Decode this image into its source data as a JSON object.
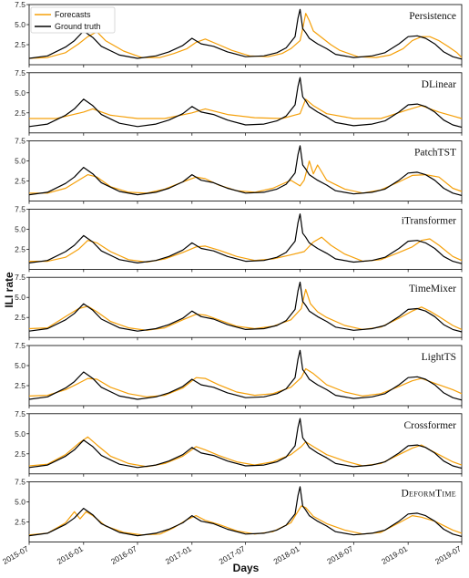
{
  "chart_data": {
    "type": "line",
    "xlabel": "Days",
    "ylabel": "ILI rate",
    "x_range": [
      "2015-07-01",
      "2019-07-01"
    ],
    "ylim": [
      0,
      7.5
    ],
    "y_ticks": [
      2.5,
      5.0,
      7.5
    ],
    "y_tick_labels": [
      "2.5",
      "5.0",
      "7.5"
    ],
    "x_ticks": [
      "2015-07",
      "2016-01",
      "2016-07",
      "2017-01",
      "2017-07",
      "2018-01",
      "2018-07",
      "2019-01",
      "2019-07"
    ],
    "legend": {
      "placement": "top-left",
      "entries": [
        {
          "label": "Forecasts",
          "color": "#f5a00a"
        },
        {
          "label": "Ground truth",
          "color": "#000000"
        }
      ]
    },
    "colors": {
      "forecast": "#f5a00a",
      "truth": "#000000"
    },
    "ground_truth": {
      "dates": [
        "2015-07-01",
        "2015-09-01",
        "2015-11-01",
        "2015-12-01",
        "2016-01-01",
        "2016-02-01",
        "2016-03-01",
        "2016-05-01",
        "2016-07-01",
        "2016-09-01",
        "2016-10-15",
        "2016-12-01",
        "2017-01-01",
        "2017-02-01",
        "2017-03-15",
        "2017-05-01",
        "2017-07-01",
        "2017-09-01",
        "2017-10-15",
        "2017-11-15",
        "2017-12-15",
        "2017-12-25",
        "2018-01-01",
        "2018-01-10",
        "2018-01-20",
        "2018-02-01",
        "2018-03-01",
        "2018-04-01",
        "2018-05-01",
        "2018-07-01",
        "2018-09-01",
        "2018-10-15",
        "2018-12-01",
        "2019-01-01",
        "2019-02-01",
        "2019-03-01",
        "2019-04-01",
        "2019-05-01",
        "2019-06-01",
        "2019-07-01"
      ],
      "values": [
        0.8,
        1.1,
        2.2,
        3.0,
        4.2,
        3.4,
        2.3,
        1.2,
        0.8,
        1.1,
        1.6,
        2.4,
        3.3,
        2.6,
        2.3,
        1.6,
        1.0,
        1.1,
        1.5,
        2.1,
        3.5,
        5.8,
        6.9,
        4.5,
        4.0,
        3.3,
        2.6,
        2.0,
        1.3,
        0.9,
        1.1,
        1.5,
        2.6,
        3.5,
        3.6,
        3.3,
        2.6,
        1.6,
        1.0,
        0.7
      ]
    },
    "panels": [
      {
        "title": "Persistence",
        "forecast": {
          "dates": [
            "2015-07-01",
            "2015-09-01",
            "2015-11-01",
            "2015-12-15",
            "2016-01-15",
            "2016-02-15",
            "2016-03-15",
            "2016-05-15",
            "2016-07-15",
            "2016-09-15",
            "2016-11-01",
            "2016-12-15",
            "2017-01-15",
            "2017-02-15",
            "2017-04-01",
            "2017-05-15",
            "2017-07-15",
            "2017-09-15",
            "2017-11-01",
            "2017-12-01",
            "2018-01-01",
            "2018-01-10",
            "2018-01-20",
            "2018-02-01",
            "2018-02-15",
            "2018-03-15",
            "2018-04-15",
            "2018-05-15",
            "2018-07-15",
            "2018-09-15",
            "2018-11-01",
            "2018-12-15",
            "2019-01-15",
            "2019-02-15",
            "2019-03-15",
            "2019-04-15",
            "2019-05-15",
            "2019-06-15",
            "2019-07-01"
          ],
          "values": [
            0.8,
            0.9,
            1.5,
            2.6,
            3.5,
            4.1,
            3.0,
            1.7,
            0.9,
            0.9,
            1.4,
            2.0,
            2.8,
            3.2,
            2.5,
            1.8,
            1.1,
            1.0,
            1.4,
            2.0,
            3.0,
            4.5,
            6.4,
            5.5,
            4.2,
            3.4,
            2.5,
            1.8,
            1.0,
            0.9,
            1.2,
            2.0,
            3.0,
            3.5,
            3.5,
            3.0,
            2.3,
            1.5,
            0.9
          ]
        }
      },
      {
        "title": "DLinear",
        "forecast": {
          "dates": [
            "2015-07-01",
            "2015-10-01",
            "2016-01-01",
            "2016-02-01",
            "2016-04-01",
            "2016-07-01",
            "2016-10-01",
            "2017-01-01",
            "2017-02-15",
            "2017-05-01",
            "2017-08-01",
            "2017-11-01",
            "2018-01-01",
            "2018-01-20",
            "2018-02-15",
            "2018-04-01",
            "2018-07-01",
            "2018-10-01",
            "2019-01-01",
            "2019-02-15",
            "2019-04-15",
            "2019-07-01"
          ],
          "values": [
            1.8,
            1.8,
            2.6,
            3.0,
            2.2,
            1.8,
            1.8,
            2.5,
            3.0,
            2.3,
            1.9,
            1.8,
            2.4,
            4.2,
            3.4,
            2.4,
            1.8,
            1.8,
            2.9,
            3.4,
            2.6,
            1.8
          ]
        }
      },
      {
        "title": "PatchTST",
        "forecast": {
          "dates": [
            "2015-07-01",
            "2015-09-01",
            "2015-11-01",
            "2015-12-15",
            "2016-01-15",
            "2016-02-15",
            "2016-04-01",
            "2016-06-01",
            "2016-08-01",
            "2016-10-01",
            "2016-12-01",
            "2017-01-15",
            "2017-02-15",
            "2017-04-01",
            "2017-06-01",
            "2017-08-01",
            "2017-10-01",
            "2017-12-01",
            "2018-01-01",
            "2018-01-15",
            "2018-02-01",
            "2018-02-15",
            "2018-03-01",
            "2018-04-01",
            "2018-06-01",
            "2018-08-01",
            "2018-10-01",
            "2018-12-01",
            "2019-01-15",
            "2019-03-01",
            "2019-04-15",
            "2019-06-01",
            "2019-07-01"
          ],
          "values": [
            1.0,
            1.0,
            1.6,
            2.6,
            3.3,
            3.0,
            1.8,
            1.1,
            1.0,
            1.5,
            2.4,
            3.0,
            2.8,
            2.0,
            1.3,
            1.1,
            1.6,
            2.6,
            1.9,
            2.6,
            5.0,
            3.4,
            4.5,
            2.6,
            1.5,
            1.0,
            1.4,
            2.4,
            3.2,
            3.3,
            3.0,
            1.6,
            1.2
          ]
        }
      },
      {
        "title": "iTransformer",
        "forecast": {
          "dates": [
            "2015-07-01",
            "2015-09-01",
            "2015-11-01",
            "2015-12-15",
            "2016-01-15",
            "2016-02-15",
            "2016-04-01",
            "2016-06-01",
            "2016-08-01",
            "2016-10-01",
            "2016-12-01",
            "2017-01-15",
            "2017-02-15",
            "2017-04-01",
            "2017-06-01",
            "2017-08-01",
            "2017-10-01",
            "2017-12-01",
            "2018-01-15",
            "2018-02-15",
            "2018-03-15",
            "2018-04-15",
            "2018-06-01",
            "2018-08-01",
            "2018-10-01",
            "2018-12-01",
            "2019-01-15",
            "2019-02-15",
            "2019-03-15",
            "2019-04-15",
            "2019-06-01",
            "2019-07-01"
          ],
          "values": [
            1.0,
            1.0,
            1.5,
            2.5,
            3.6,
            3.3,
            2.2,
            1.2,
            0.9,
            1.3,
            2.1,
            2.8,
            2.9,
            2.4,
            1.6,
            1.1,
            1.3,
            1.8,
            2.2,
            3.4,
            4.0,
            3.0,
            1.9,
            1.0,
            1.2,
            2.1,
            2.8,
            3.6,
            3.8,
            3.0,
            1.6,
            1.1
          ]
        }
      },
      {
        "title": "TimeMixer",
        "forecast": {
          "dates": [
            "2015-07-01",
            "2015-09-01",
            "2015-11-01",
            "2015-12-15",
            "2016-01-15",
            "2016-02-15",
            "2016-04-01",
            "2016-06-01",
            "2016-08-01",
            "2016-10-01",
            "2016-12-01",
            "2017-01-15",
            "2017-02-15",
            "2017-04-01",
            "2017-06-01",
            "2017-08-01",
            "2017-10-01",
            "2017-12-01",
            "2018-01-05",
            "2018-01-20",
            "2018-02-05",
            "2018-03-01",
            "2018-04-01",
            "2018-06-01",
            "2018-08-01",
            "2018-10-01",
            "2018-12-01",
            "2019-01-15",
            "2019-02-15",
            "2019-03-15",
            "2019-04-15",
            "2019-06-01",
            "2019-07-01"
          ],
          "values": [
            1.1,
            1.2,
            2.6,
            3.6,
            3.9,
            3.2,
            2.0,
            1.2,
            0.9,
            1.2,
            2.2,
            2.9,
            2.8,
            2.2,
            1.4,
            1.1,
            1.4,
            2.2,
            3.6,
            6.0,
            4.2,
            3.2,
            2.5,
            1.5,
            1.0,
            1.3,
            2.4,
            3.3,
            3.8,
            3.3,
            2.6,
            1.5,
            1.0
          ]
        }
      },
      {
        "title": "LightTS",
        "forecast": {
          "dates": [
            "2015-07-01",
            "2015-09-01",
            "2015-11-01",
            "2015-12-15",
            "2016-01-15",
            "2016-02-15",
            "2016-04-01",
            "2016-06-01",
            "2016-08-01",
            "2016-10-01",
            "2016-12-01",
            "2017-01-15",
            "2017-02-15",
            "2017-04-01",
            "2017-06-01",
            "2017-08-01",
            "2017-10-01",
            "2017-12-01",
            "2018-01-05",
            "2018-01-20",
            "2018-02-15",
            "2018-04-01",
            "2018-06-01",
            "2018-08-01",
            "2018-10-01",
            "2018-12-01",
            "2019-01-15",
            "2019-02-15",
            "2019-04-01",
            "2019-06-01",
            "2019-07-01"
          ],
          "values": [
            1.2,
            1.3,
            2.0,
            2.8,
            3.4,
            3.3,
            2.3,
            1.5,
            1.1,
            1.3,
            2.2,
            3.5,
            3.4,
            2.6,
            1.7,
            1.3,
            1.5,
            2.3,
            3.5,
            4.6,
            4.0,
            2.6,
            1.7,
            1.2,
            1.5,
            2.4,
            3.1,
            3.4,
            2.8,
            2.0,
            1.5
          ]
        }
      },
      {
        "title": "Crossformer",
        "forecast": {
          "dates": [
            "2015-07-01",
            "2015-09-01",
            "2015-11-01",
            "2015-12-15",
            "2016-01-15",
            "2016-02-15",
            "2016-04-01",
            "2016-06-01",
            "2016-08-01",
            "2016-10-01",
            "2016-12-01",
            "2017-01-15",
            "2017-02-15",
            "2017-04-01",
            "2017-06-01",
            "2017-08-01",
            "2017-10-01",
            "2017-12-01",
            "2018-01-05",
            "2018-01-20",
            "2018-02-15",
            "2018-04-01",
            "2018-06-01",
            "2018-08-01",
            "2018-10-01",
            "2018-12-01",
            "2019-01-15",
            "2019-02-15",
            "2019-03-15",
            "2019-04-15",
            "2019-06-01",
            "2019-07-01"
          ],
          "values": [
            1.0,
            1.2,
            2.4,
            3.8,
            4.6,
            3.6,
            2.2,
            1.3,
            0.9,
            1.3,
            2.2,
            3.4,
            3.0,
            2.3,
            1.5,
            1.1,
            1.5,
            2.4,
            3.4,
            4.0,
            3.4,
            2.4,
            1.6,
            1.0,
            1.3,
            2.4,
            3.2,
            3.6,
            3.0,
            2.4,
            1.5,
            1.1
          ]
        }
      },
      {
        "title": "DeformTime",
        "forecast": {
          "dates": [
            "2015-07-01",
            "2015-09-01",
            "2015-11-01",
            "2015-12-01",
            "2015-12-20",
            "2016-01-10",
            "2016-02-01",
            "2016-03-15",
            "2016-05-15",
            "2016-07-15",
            "2016-09-15",
            "2016-11-01",
            "2016-12-15",
            "2017-01-15",
            "2017-02-15",
            "2017-04-01",
            "2017-06-01",
            "2017-08-01",
            "2017-10-01",
            "2017-12-01",
            "2018-01-05",
            "2018-01-20",
            "2018-02-15",
            "2018-04-01",
            "2018-06-01",
            "2018-08-01",
            "2018-10-01",
            "2018-12-01",
            "2019-01-15",
            "2019-02-15",
            "2019-04-01",
            "2019-06-01",
            "2019-07-01"
          ],
          "values": [
            0.9,
            1.1,
            2.4,
            3.8,
            2.9,
            3.8,
            3.3,
            2.0,
            1.2,
            0.9,
            1.0,
            1.8,
            2.8,
            3.3,
            2.7,
            2.2,
            1.4,
            1.0,
            1.3,
            2.4,
            4.5,
            4.3,
            3.2,
            2.3,
            1.5,
            1.0,
            1.2,
            2.4,
            3.3,
            3.1,
            2.6,
            1.5,
            1.1
          ]
        }
      }
    ]
  }
}
